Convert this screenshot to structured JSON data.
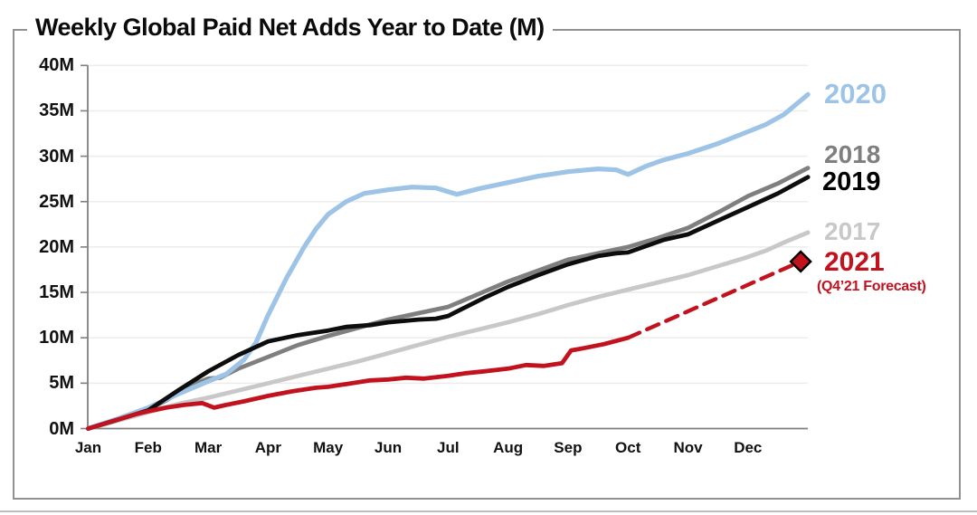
{
  "title": "Weekly Global Paid Net Adds Year to Date (M)",
  "chart_data": {
    "type": "line",
    "title": "Weekly Global Paid Net Adds Year to Date (M)",
    "xlabel": "",
    "ylabel": "",
    "ylim": [
      0,
      40
    ],
    "grid": "horizontal",
    "legend_position": "right",
    "x_axis": {
      "tick_labels": [
        "Jan",
        "Feb",
        "Mar",
        "Apr",
        "May",
        "Jun",
        "Jul",
        "Aug",
        "Sep",
        "Oct",
        "Nov",
        "Dec"
      ]
    },
    "y_axis": {
      "tick_labels": [
        "0M",
        "5M",
        "10M",
        "15M",
        "20M",
        "25M",
        "30M",
        "35M",
        "40M"
      ],
      "min": 0,
      "max": 40,
      "step": 5
    },
    "series": [
      {
        "name": "2017",
        "color": "#c8c8c8",
        "style": "solid",
        "width": 4.8,
        "points": [
          [
            0,
            0
          ],
          [
            0.5,
            0.9
          ],
          [
            1,
            1.8
          ],
          [
            1.5,
            2.7
          ],
          [
            2,
            3.4
          ],
          [
            2.5,
            4.2
          ],
          [
            3,
            5.0
          ],
          [
            3.5,
            5.8
          ],
          [
            4,
            6.6
          ],
          [
            4.5,
            7.4
          ],
          [
            5,
            8.3
          ],
          [
            5.5,
            9.2
          ],
          [
            6,
            10.1
          ],
          [
            6.5,
            10.9
          ],
          [
            7,
            11.7
          ],
          [
            7.5,
            12.6
          ],
          [
            8,
            13.6
          ],
          [
            8.5,
            14.5
          ],
          [
            9,
            15.3
          ],
          [
            9.5,
            16.1
          ],
          [
            10,
            16.9
          ],
          [
            10.5,
            17.9
          ],
          [
            11,
            18.9
          ],
          [
            11.3,
            19.6
          ],
          [
            11.6,
            20.5
          ],
          [
            12,
            21.6
          ]
        ]
      },
      {
        "name": "2018",
        "color": "#7f7f7f",
        "style": "solid",
        "width": 4.8,
        "points": [
          [
            0,
            0
          ],
          [
            0.5,
            1.0
          ],
          [
            1,
            2.1
          ],
          [
            1.3,
            3.1
          ],
          [
            1.7,
            4.7
          ],
          [
            2,
            5.5
          ],
          [
            2.2,
            5.6
          ],
          [
            2.5,
            6.6
          ],
          [
            3,
            7.9
          ],
          [
            3.5,
            9.2
          ],
          [
            4,
            10.2
          ],
          [
            4.5,
            11.1
          ],
          [
            5,
            12.0
          ],
          [
            5.5,
            12.7
          ],
          [
            6,
            13.4
          ],
          [
            6.5,
            14.8
          ],
          [
            7,
            16.2
          ],
          [
            7.5,
            17.4
          ],
          [
            8,
            18.6
          ],
          [
            8.5,
            19.3
          ],
          [
            9,
            20.0
          ],
          [
            9.5,
            21.0
          ],
          [
            10,
            22.1
          ],
          [
            10.5,
            23.8
          ],
          [
            11,
            25.6
          ],
          [
            11.5,
            27.0
          ],
          [
            12,
            28.7
          ]
        ]
      },
      {
        "name": "2020",
        "color": "#9dc3e6",
        "style": "solid",
        "width": 5.2,
        "points": [
          [
            0,
            0
          ],
          [
            0.5,
            1.1
          ],
          [
            1,
            2.3
          ],
          [
            1.5,
            3.8
          ],
          [
            2,
            5.2
          ],
          [
            2.3,
            6.0
          ],
          [
            2.6,
            7.6
          ],
          [
            2.8,
            9.5
          ],
          [
            3,
            12.5
          ],
          [
            3.3,
            16.5
          ],
          [
            3.6,
            20.0
          ],
          [
            3.8,
            22.0
          ],
          [
            4,
            23.6
          ],
          [
            4.3,
            25.0
          ],
          [
            4.6,
            25.9
          ],
          [
            5,
            26.3
          ],
          [
            5.4,
            26.6
          ],
          [
            5.8,
            26.5
          ],
          [
            6,
            26.1
          ],
          [
            6.15,
            25.8
          ],
          [
            6.5,
            26.4
          ],
          [
            7,
            27.1
          ],
          [
            7.5,
            27.8
          ],
          [
            8,
            28.3
          ],
          [
            8.5,
            28.6
          ],
          [
            8.8,
            28.5
          ],
          [
            9,
            28.0
          ],
          [
            9.3,
            28.9
          ],
          [
            9.6,
            29.6
          ],
          [
            10,
            30.3
          ],
          [
            10.5,
            31.4
          ],
          [
            11,
            32.7
          ],
          [
            11.3,
            33.5
          ],
          [
            11.6,
            34.6
          ],
          [
            12,
            36.8
          ]
        ]
      },
      {
        "name": "2019",
        "color": "#0d0d0d",
        "style": "solid",
        "width": 4.8,
        "points": [
          [
            0,
            0
          ],
          [
            0.5,
            1.0
          ],
          [
            1,
            2.0
          ],
          [
            1.5,
            4.2
          ],
          [
            2,
            6.3
          ],
          [
            2.5,
            8.1
          ],
          [
            3,
            9.6
          ],
          [
            3.5,
            10.3
          ],
          [
            4,
            10.8
          ],
          [
            4.3,
            11.2
          ],
          [
            4.7,
            11.4
          ],
          [
            5,
            11.7
          ],
          [
            5.5,
            12.0
          ],
          [
            5.8,
            12.1
          ],
          [
            6,
            12.4
          ],
          [
            6.3,
            13.4
          ],
          [
            6.6,
            14.4
          ],
          [
            7,
            15.6
          ],
          [
            7.5,
            16.9
          ],
          [
            8,
            18.1
          ],
          [
            8.5,
            19.0
          ],
          [
            8.8,
            19.3
          ],
          [
            9,
            19.4
          ],
          [
            9.3,
            20.1
          ],
          [
            9.6,
            20.8
          ],
          [
            10,
            21.4
          ],
          [
            10.5,
            22.9
          ],
          [
            11,
            24.4
          ],
          [
            11.5,
            25.9
          ],
          [
            12,
            27.7
          ]
        ]
      },
      {
        "name": "2021",
        "color": "#c2121e",
        "style": "solid",
        "width": 4.8,
        "points": [
          [
            0,
            0
          ],
          [
            0.4,
            0.8
          ],
          [
            0.8,
            1.6
          ],
          [
            1,
            1.9
          ],
          [
            1.3,
            2.3
          ],
          [
            1.6,
            2.6
          ],
          [
            1.9,
            2.8
          ],
          [
            2.1,
            2.3
          ],
          [
            2.3,
            2.6
          ],
          [
            2.6,
            3.0
          ],
          [
            3,
            3.6
          ],
          [
            3.4,
            4.1
          ],
          [
            3.8,
            4.5
          ],
          [
            4,
            4.6
          ],
          [
            4.4,
            5.0
          ],
          [
            4.7,
            5.3
          ],
          [
            5,
            5.4
          ],
          [
            5.3,
            5.6
          ],
          [
            5.6,
            5.5
          ],
          [
            6,
            5.8
          ],
          [
            6.3,
            6.1
          ],
          [
            6.6,
            6.3
          ],
          [
            7,
            6.6
          ],
          [
            7.3,
            7.0
          ],
          [
            7.6,
            6.9
          ],
          [
            7.9,
            7.2
          ],
          [
            8.05,
            8.6
          ],
          [
            8.3,
            8.9
          ],
          [
            8.6,
            9.3
          ],
          [
            9,
            10.0
          ]
        ]
      },
      {
        "name": "2021-forecast",
        "color": "#c2121e",
        "style": "dashed",
        "width": 4.4,
        "points": [
          [
            9,
            10.0
          ],
          [
            11.88,
            18.4
          ]
        ],
        "marker": {
          "shape": "diamond",
          "at": [
            11.88,
            18.4
          ],
          "fill": "#c2121e",
          "stroke": "#000000",
          "size": 11
        }
      }
    ]
  },
  "legend": {
    "items": [
      {
        "label": "2020",
        "color": "#9dc3e6"
      },
      {
        "label": "2018",
        "color": "#7f7f7f"
      },
      {
        "label": "2019",
        "color": "#000000"
      },
      {
        "label": "2017",
        "color": "#c8c8c8"
      },
      {
        "label": "2021",
        "color": "#c2121e"
      },
      {
        "label": "(Q4’21 Forecast)",
        "color": "#c2121e"
      }
    ]
  }
}
